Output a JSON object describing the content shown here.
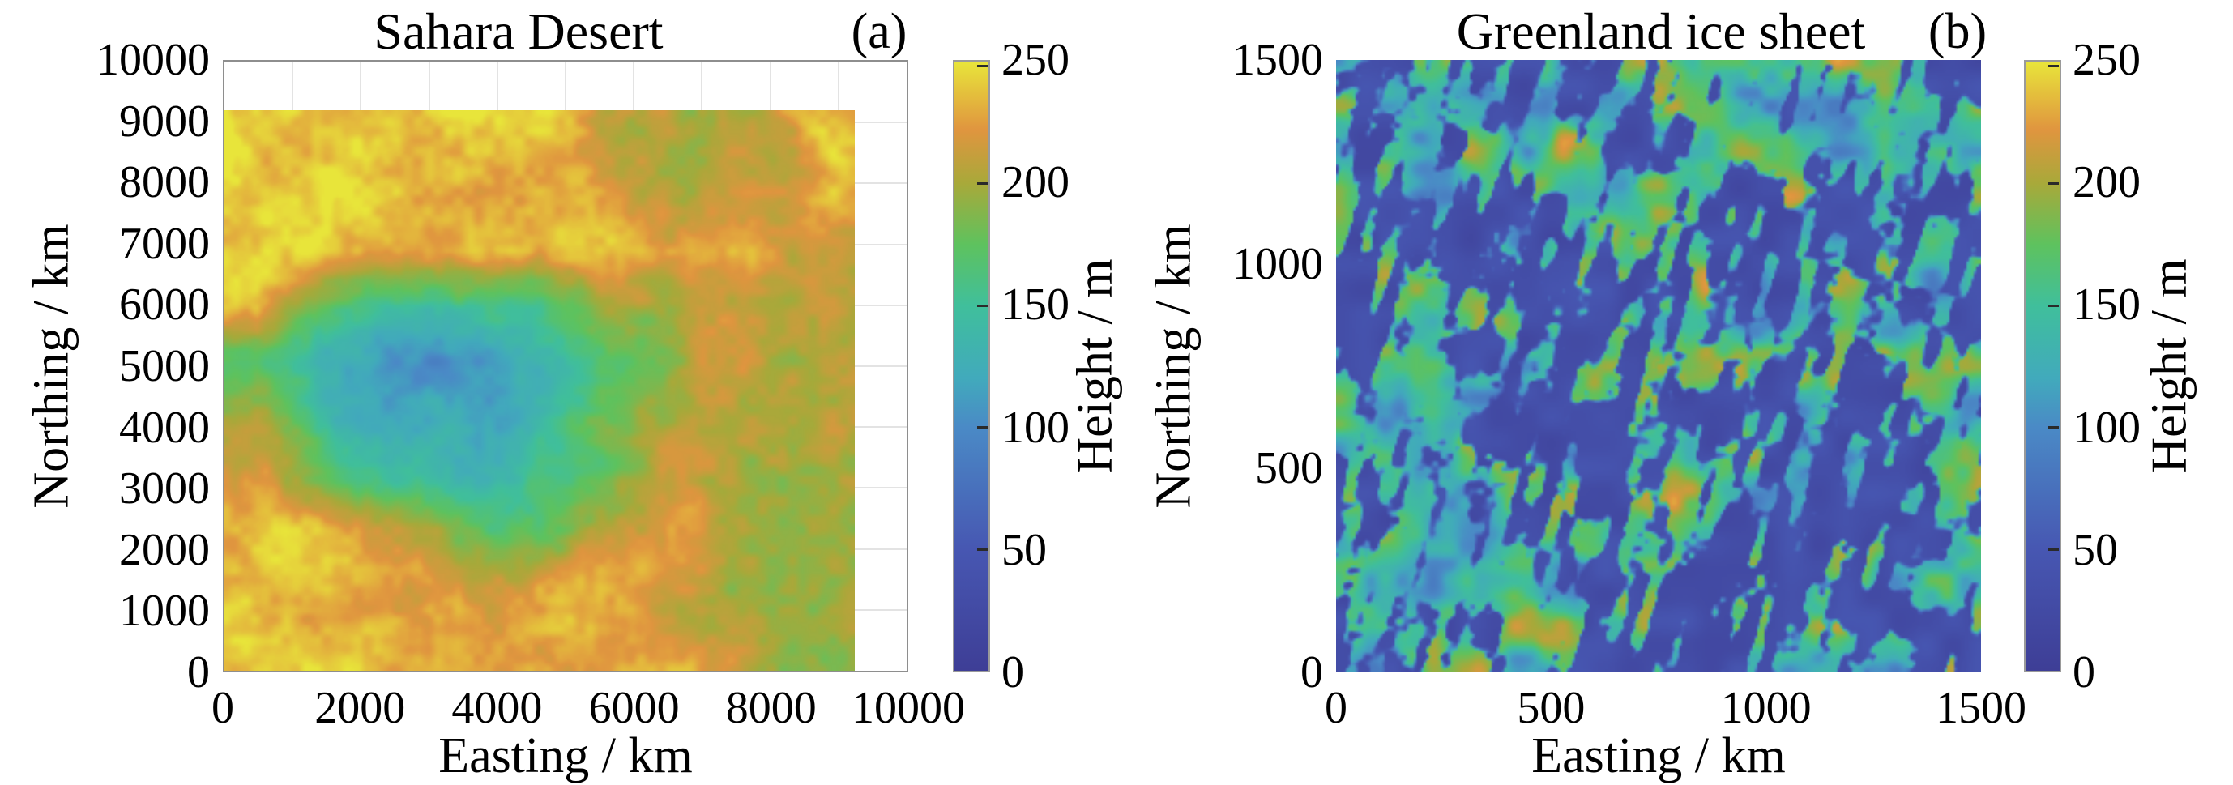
{
  "panels": [
    {
      "corner_label": "(a)",
      "title": "Sahara Desert",
      "xlabel": "Easting / km",
      "ylabel": "Northing / km",
      "xlim": [
        0,
        10000
      ],
      "ylim": [
        0,
        10000
      ],
      "x_tick_labels": [
        "0",
        "2000",
        "4000",
        "6000",
        "8000",
        "10000"
      ],
      "y_tick_labels": [
        "0",
        "1000",
        "2000",
        "3000",
        "4000",
        "5000",
        "6000",
        "7000",
        "8000",
        "9000",
        "10000"
      ],
      "grid_interval_km": 1000,
      "data_extent_km": [
        9200,
        9200
      ],
      "colorbar": {
        "label": "Height / m",
        "ticks": [
          "0",
          "50",
          "100",
          "150",
          "200",
          "250"
        ],
        "min": 0,
        "max": 250
      }
    },
    {
      "corner_label": "(b)",
      "title": "Greenland ice sheet",
      "xlabel": "Easting / km",
      "ylabel": "Northing / km",
      "xlim": [
        0,
        1500
      ],
      "ylim": [
        0,
        1500
      ],
      "x_tick_labels": [
        "0",
        "500",
        "1000",
        "1500"
      ],
      "y_tick_labels": [
        "0",
        "500",
        "1000",
        "1500"
      ],
      "grid_interval_km": null,
      "data_extent_km": [
        1500,
        1500
      ],
      "colorbar": {
        "label": "Height / m",
        "ticks": [
          "0",
          "50",
          "100",
          "150",
          "200",
          "250"
        ],
        "min": 0,
        "max": 250
      }
    }
  ],
  "colormap_height_m": [
    {
      "value": 0,
      "color": "#3e3e96"
    },
    {
      "value": 50,
      "color": "#4757b2"
    },
    {
      "value": 100,
      "color": "#4a8ac6"
    },
    {
      "value": 120,
      "color": "#41aabc"
    },
    {
      "value": 150,
      "color": "#40bf9b"
    },
    {
      "value": 175,
      "color": "#5ec25e"
    },
    {
      "value": 200,
      "color": "#a8a93a"
    },
    {
      "value": 222,
      "color": "#e0953f"
    },
    {
      "value": 250,
      "color": "#e8e53a"
    }
  ],
  "chart_data": [
    {
      "type": "heatmap",
      "panel": "(a)",
      "title": "Sahara Desert",
      "xlabel": "Easting / km",
      "ylabel": "Northing / km",
      "zlabel": "Height / m",
      "xlim": [
        0,
        10000
      ],
      "ylim": [
        0,
        10000
      ],
      "zlim": [
        0,
        250
      ],
      "grid": true,
      "legend_position": "right-colorbar",
      "x_centers_km": [
        460,
        1380,
        2300,
        3220,
        4140,
        5060,
        5980,
        6900,
        7820,
        8740
      ],
      "y_centers_km_north_to_south": [
        8740,
        7820,
        6900,
        5980,
        5060,
        4140,
        3220,
        2300,
        1380,
        460
      ],
      "values_grid_height_m": [
        [
          243,
          241,
          240,
          242,
          238,
          230,
          205,
          190,
          200,
          236
        ],
        [
          242,
          243,
          241,
          239,
          241,
          235,
          210,
          195,
          212,
          230
        ],
        [
          240,
          241,
          238,
          240,
          237,
          239,
          226,
          220,
          224,
          214
        ],
        [
          228,
          170,
          150,
          148,
          155,
          175,
          205,
          212,
          208,
          212
        ],
        [
          170,
          125,
          118,
          112,
          128,
          140,
          175,
          208,
          212,
          205
        ],
        [
          195,
          145,
          122,
          132,
          118,
          152,
          182,
          202,
          198,
          207
        ],
        [
          218,
          182,
          152,
          142,
          138,
          162,
          192,
          212,
          202,
          198
        ],
        [
          236,
          226,
          207,
          192,
          172,
          187,
          207,
          217,
          207,
          193
        ],
        [
          241,
          236,
          231,
          227,
          217,
          227,
          222,
          212,
          197,
          188
        ],
        [
          239,
          241,
          237,
          233,
          229,
          231,
          226,
          217,
          207,
          197
        ]
      ],
      "notes": "Mostly high yellow terrain (~235-250 m) with orange mottling (~210-225 m); a cyan-teal low band (~100-150 m) spans northing 2200-6000 km strongest at easting 0-6000 km; greenish patches (~190-205 m) near the north-east; data covers 0-9200 km of the 0-10000 km axes."
    },
    {
      "type": "heatmap",
      "panel": "(b)",
      "title": "Greenland ice sheet",
      "xlabel": "Easting / km",
      "ylabel": "Northing / km",
      "zlabel": "Height / m",
      "xlim": [
        0,
        1500
      ],
      "ylim": [
        0,
        1500
      ],
      "zlim": [
        0,
        250
      ],
      "grid": false,
      "legend_position": "right-colorbar",
      "x_centers_km": [
        75,
        225,
        375,
        525,
        675,
        825,
        975,
        1125,
        1275,
        1425
      ],
      "y_centers_km_north_to_south": [
        1425,
        1275,
        1125,
        975,
        825,
        675,
        525,
        375,
        225,
        75
      ],
      "values_grid_height_m": [
        [
          152,
          118,
          178,
          92,
          141,
          162,
          108,
          72,
          131,
          156
        ],
        [
          134,
          161,
          96,
          144,
          171,
          119,
          86,
          139,
          158,
          99
        ],
        [
          121,
          84,
          149,
          174,
          112,
          139,
          154,
          97,
          62,
          134
        ],
        [
          92,
          141,
          166,
          121,
          82,
          154,
          169,
          131,
          104,
          149
        ],
        [
          156,
          111,
          76,
          136,
          159,
          101,
          141,
          164,
          119,
          86
        ],
        [
          129,
          171,
          146,
          91,
          122,
          153,
          74,
          111,
          151,
          161
        ],
        [
          101,
          136,
          158,
          151,
          96,
          129,
          161,
          139,
          84,
          119
        ],
        [
          146,
          91,
          121,
          164,
          141,
          109,
          96,
          149,
          171,
          106
        ],
        [
          114,
          151,
          169,
          101,
          131,
          159,
          119,
          81,
          141,
          154
        ],
        [
          139,
          104,
          86,
          144,
          156,
          124,
          149,
          114,
          99,
          131
        ]
      ],
      "notes": "Fine bimodal speckle: deep indigo lows (~10-40 m) interleaved with diagonal (NNE-trending) streaks of teal/green (~140-180 m) and gold/yellow (~200-250 m); data fills the whole 0-1500 km axes."
    }
  ]
}
